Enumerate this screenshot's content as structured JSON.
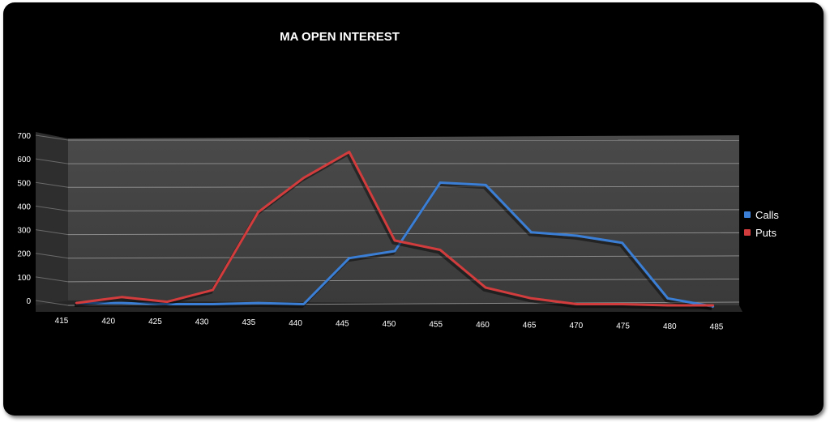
{
  "chart_data": {
    "type": "line",
    "title": "MA OPEN INTEREST",
    "xlabel": "",
    "ylabel": "",
    "categories": [
      "415",
      "420",
      "425",
      "430",
      "435",
      "440",
      "445",
      "450",
      "455",
      "460",
      "465",
      "470",
      "475",
      "480",
      "485"
    ],
    "ylim": [
      0,
      700
    ],
    "yticks": [
      "0",
      "100",
      "200",
      "300",
      "400",
      "500",
      "600",
      "700"
    ],
    "grid": true,
    "legend_position": "right",
    "three_d": true,
    "series": [
      {
        "name": "Calls",
        "color": "#3a7fd5",
        "values": [
          10,
          10,
          5,
          5,
          10,
          5,
          200,
          230,
          520,
          510,
          310,
          295,
          265,
          30,
          -5
        ]
      },
      {
        "name": "Puts",
        "color": "#d23c3c",
        "values": [
          10,
          35,
          15,
          65,
          395,
          540,
          650,
          275,
          235,
          75,
          30,
          5,
          5,
          0,
          0
        ]
      }
    ]
  }
}
